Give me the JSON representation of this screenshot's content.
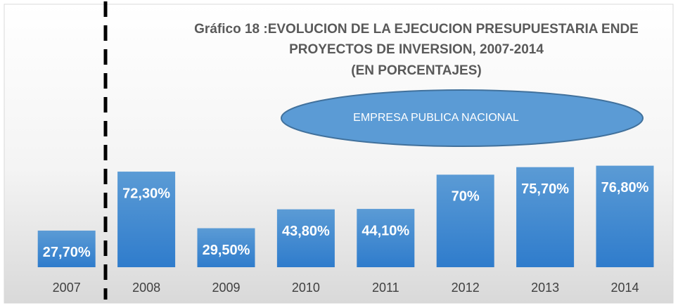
{
  "chart_data": {
    "type": "bar",
    "title": [
      "Gráfico 18 :EVOLUCION DE LA EJECUCION PRESUPUESTARIA ENDE",
      "PROYECTOS DE INVERSION, 2007-2014",
      "(EN PORCENTAJES)"
    ],
    "annotation": "EMPRESA PUBLICA NACIONAL",
    "categories": [
      "2007",
      "2008",
      "2009",
      "2010",
      "2011",
      "2012",
      "2013",
      "2014"
    ],
    "values": [
      27.7,
      72.3,
      29.5,
      43.8,
      44.1,
      70,
      75.7,
      76.8
    ],
    "value_labels": [
      "27,70%",
      "72,30%",
      "29,50%",
      "43,80%",
      "44,10%",
      "70%",
      "75,70%",
      "76,80%"
    ],
    "color": "#5b9bd5"
  }
}
